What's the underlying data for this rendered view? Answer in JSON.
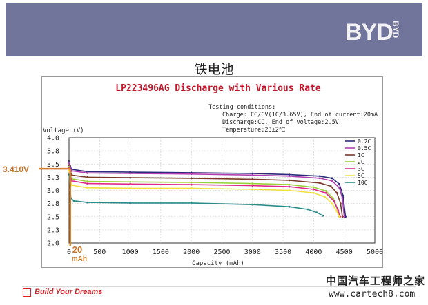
{
  "header": {
    "logo_text": "BYD",
    "logo_vertical": "BYD",
    "band_color": "#71749b"
  },
  "page_title": "铁电池",
  "chart_data": {
    "type": "line",
    "title": "LP223496AG Discharge with Various Rate",
    "ylabel": "Voltage (V)",
    "xlabel": "Capacity (mAh)",
    "xlim": [
      0,
      5000
    ],
    "ylim": [
      2.0,
      4.0
    ],
    "x_ticks": [
      "0",
      "500",
      "1000",
      "1500",
      "2000",
      "2500",
      "3000",
      "3500",
      "4000",
      "4500",
      "5000"
    ],
    "y_ticks": [
      "2.0",
      "2.3",
      "2.5",
      "2.8",
      "3.0",
      "3.3",
      "3.5",
      "3.8",
      "4.0"
    ],
    "grid": true,
    "legend_position": "top-right",
    "conditions": [
      "Testing conditions:",
      "Charge: CC/CV(1C/3.65V), End of current:20mA",
      "Discharge:CC, End of voltage:2.5V",
      "Temperature:23±2℃"
    ],
    "series": [
      {
        "name": "0.2C",
        "color": "#2b2b7a",
        "points": [
          [
            0,
            3.55
          ],
          [
            40,
            3.4
          ],
          [
            300,
            3.355
          ],
          [
            1000,
            3.345
          ],
          [
            2000,
            3.335
          ],
          [
            3000,
            3.32
          ],
          [
            3600,
            3.3
          ],
          [
            4100,
            3.27
          ],
          [
            4300,
            3.23
          ],
          [
            4420,
            3.12
          ],
          [
            4480,
            2.9
          ],
          [
            4520,
            2.5
          ]
        ]
      },
      {
        "name": "0.5C",
        "color": "#b040b0",
        "points": [
          [
            0,
            3.52
          ],
          [
            40,
            3.37
          ],
          [
            300,
            3.33
          ],
          [
            1000,
            3.32
          ],
          [
            2000,
            3.31
          ],
          [
            3000,
            3.29
          ],
          [
            3600,
            3.27
          ],
          [
            4100,
            3.23
          ],
          [
            4300,
            3.18
          ],
          [
            4420,
            3.05
          ],
          [
            4470,
            2.85
          ],
          [
            4500,
            2.5
          ]
        ]
      },
      {
        "name": "1C",
        "color": "#7a3a2a",
        "points": [
          [
            0,
            3.48
          ],
          [
            40,
            3.29
          ],
          [
            300,
            3.25
          ],
          [
            1000,
            3.24
          ],
          [
            2000,
            3.23
          ],
          [
            3000,
            3.21
          ],
          [
            3600,
            3.19
          ],
          [
            4100,
            3.14
          ],
          [
            4280,
            3.08
          ],
          [
            4380,
            2.95
          ],
          [
            4440,
            2.75
          ],
          [
            4470,
            2.5
          ]
        ]
      },
      {
        "name": "2C",
        "color": "#9ad23a",
        "points": [
          [
            0,
            3.45
          ],
          [
            40,
            3.22
          ],
          [
            300,
            3.17
          ],
          [
            1000,
            3.16
          ],
          [
            2000,
            3.15
          ],
          [
            3000,
            3.13
          ],
          [
            3600,
            3.11
          ],
          [
            4000,
            3.06
          ],
          [
            4200,
            2.99
          ],
          [
            4320,
            2.85
          ],
          [
            4390,
            2.65
          ],
          [
            4420,
            2.5
          ]
        ]
      },
      {
        "name": "3C",
        "color": "#e0288a",
        "points": [
          [
            0,
            3.42
          ],
          [
            40,
            3.18
          ],
          [
            300,
            3.13
          ],
          [
            1000,
            3.12
          ],
          [
            2000,
            3.11
          ],
          [
            3000,
            3.09
          ],
          [
            3600,
            3.07
          ],
          [
            4000,
            3.02
          ],
          [
            4200,
            2.95
          ],
          [
            4330,
            2.8
          ],
          [
            4400,
            2.62
          ],
          [
            4430,
            2.5
          ]
        ]
      },
      {
        "name": "5C",
        "color": "#f0e040",
        "points": [
          [
            0,
            3.38
          ],
          [
            40,
            3.1
          ],
          [
            300,
            3.05
          ],
          [
            1000,
            3.04
          ],
          [
            2000,
            3.04
          ],
          [
            3000,
            3.02
          ],
          [
            3600,
            3.0
          ],
          [
            4000,
            2.95
          ],
          [
            4180,
            2.88
          ],
          [
            4300,
            2.75
          ],
          [
            4380,
            2.6
          ],
          [
            4420,
            2.5
          ]
        ]
      },
      {
        "name": "10C",
        "color": "#2a8a8a",
        "points": [
          [
            0,
            3.3
          ],
          [
            30,
            2.85
          ],
          [
            80,
            2.8
          ],
          [
            300,
            2.77
          ],
          [
            1000,
            2.76
          ],
          [
            2000,
            2.76
          ],
          [
            3000,
            2.73
          ],
          [
            3600,
            2.69
          ],
          [
            3900,
            2.64
          ],
          [
            4050,
            2.58
          ],
          [
            4150,
            2.52
          ]
        ]
      }
    ],
    "annotations": {
      "voltage_marker": "3.410V",
      "voltage_marker_value": 3.41,
      "capacity_marker_value": "20",
      "capacity_marker_unit": "mAh",
      "capacity_marker_x": 20,
      "marker_color": "#d9822b"
    }
  },
  "footer": {
    "slogan": "Build Your Dreams",
    "watermark_cn": "中国汽车工程师之家",
    "watermark_url": "www.cartech8.com"
  }
}
